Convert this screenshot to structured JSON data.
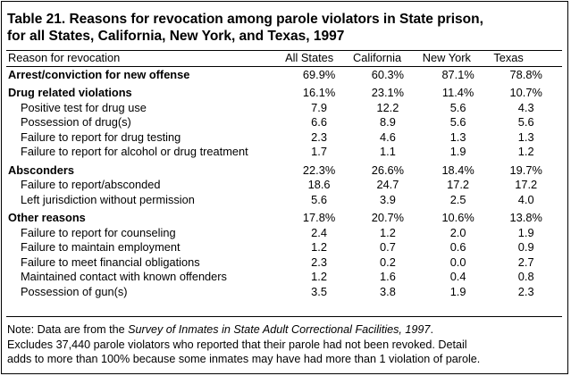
{
  "title": {
    "line1": "Table 21.  Reasons for revocation among parole violators in State prison,",
    "line2": "for all States, California, New York, and Texas, 1997"
  },
  "columns": {
    "reason": "Reason for revocation",
    "all_states": "All States",
    "california": "California",
    "new_york": "New York",
    "texas": "Texas"
  },
  "rows": [
    {
      "type": "group",
      "label": "Arrest/conviction for new offense",
      "all": "69.9%",
      "ca": "60.3%",
      "ny": "87.1%",
      "tx": "78.8%"
    },
    {
      "type": "group",
      "label": "Drug related violations",
      "all": "16.1%",
      "ca": "23.1%",
      "ny": "11.4%",
      "tx": "10.7%"
    },
    {
      "type": "sub",
      "label": "Positive test for drug use",
      "all": "7.9",
      "ca": "12.2",
      "ny": "5.6",
      "tx": "4.3"
    },
    {
      "type": "sub",
      "label": "Possession of drug(s)",
      "all": "6.6",
      "ca": "8.9",
      "ny": "5.6",
      "tx": "5.6"
    },
    {
      "type": "sub",
      "label": "Failure to report for drug testing",
      "all": "2.3",
      "ca": "4.6",
      "ny": "1.3",
      "tx": "1.3"
    },
    {
      "type": "sub",
      "label": "Failure to report for alcohol or drug treatment",
      "all": "1.7",
      "ca": "1.1",
      "ny": "1.9",
      "tx": "1.2"
    },
    {
      "type": "group",
      "label": "Absconders",
      "all": "22.3%",
      "ca": "26.6%",
      "ny": "18.4%",
      "tx": "19.7%"
    },
    {
      "type": "sub",
      "label": "Failure to report/absconded",
      "all": "18.6",
      "ca": "24.7",
      "ny": "17.2",
      "tx": "17.2"
    },
    {
      "type": "sub",
      "label": "Left jurisdiction without permission",
      "all": "5.6",
      "ca": "3.9",
      "ny": "2.5",
      "tx": "4.0"
    },
    {
      "type": "group",
      "label": "Other reasons",
      "all": "17.8%",
      "ca": "20.7%",
      "ny": "10.6%",
      "tx": "13.8%"
    },
    {
      "type": "sub",
      "label": "Failure to report for counseling",
      "all": "2.4",
      "ca": "1.2",
      "ny": "2.0",
      "tx": "1.9"
    },
    {
      "type": "sub",
      "label": "Failure to maintain employment",
      "all": "1.2",
      "ca": "0.7",
      "ny": "0.6",
      "tx": "0.9"
    },
    {
      "type": "sub",
      "label": "Failure to meet financial obligations",
      "all": "2.3",
      "ca": "0.2",
      "ny": "0.0",
      "tx": "2.7"
    },
    {
      "type": "sub",
      "label": "Maintained contact with known offenders",
      "all": "1.2",
      "ca": "1.6",
      "ny": "0.4",
      "tx": "0.8"
    },
    {
      "type": "sub",
      "label": "Possession of gun(s)",
      "all": "3.5",
      "ca": "3.8",
      "ny": "1.9",
      "tx": "2.3"
    }
  ],
  "note": {
    "prefix": "Note:  Data are from the ",
    "source": "Survey of Inmates in State Adult Correctional Facilities, 1997",
    "suffix": ".",
    "line2": "Excludes 37,440 parole violators who reported that their parole had not been revoked.  Detail",
    "line3": "adds to more than 100% because some inmates may have had more than 1 violation of parole."
  }
}
